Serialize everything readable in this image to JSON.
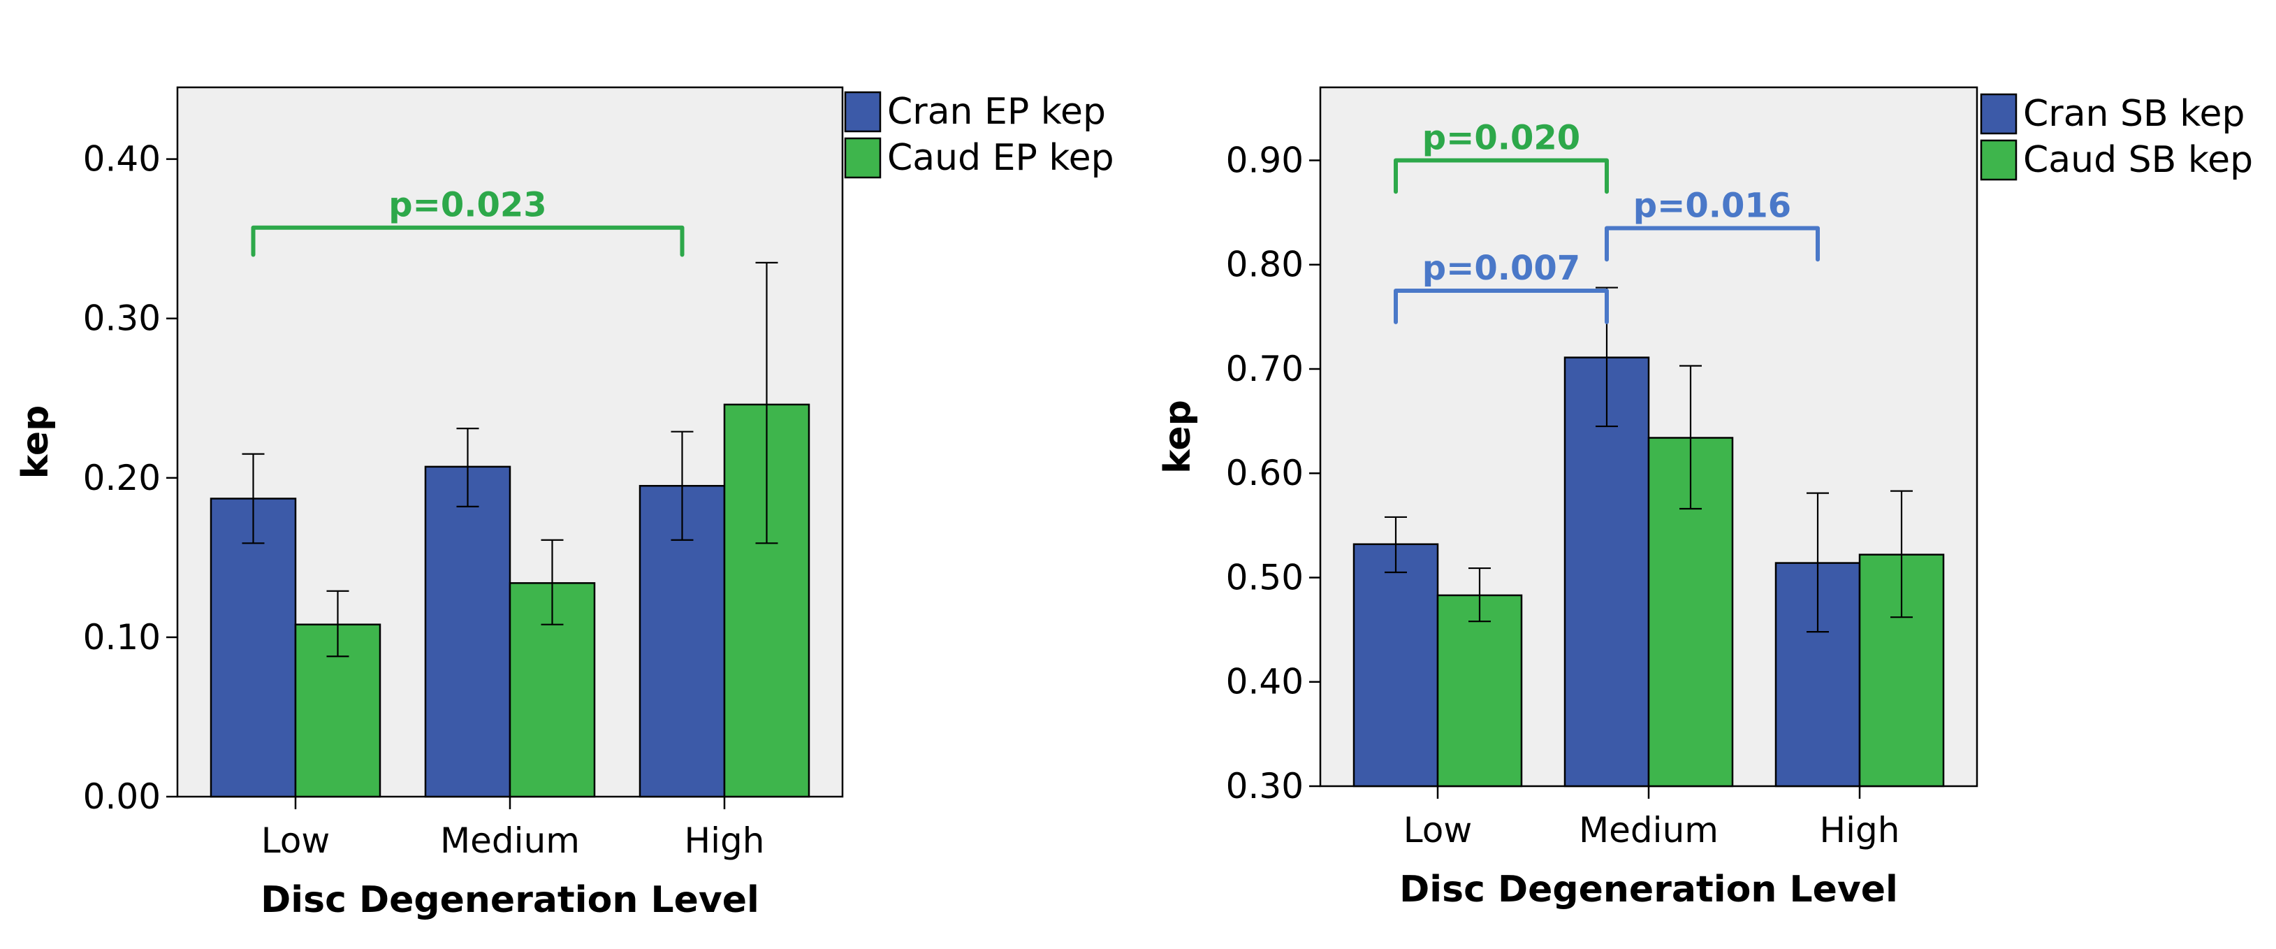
{
  "colors": {
    "cran": "#3c5aa8",
    "caud": "#3eb54c",
    "bracket_green": "#2da84a",
    "bracket_blue": "#4a78c8",
    "plot_bg": "#efefef"
  },
  "chart_data": [
    {
      "type": "bar",
      "xlabel": "Disc Degeneration Level",
      "ylabel": "kep",
      "ylim": [
        0.0,
        0.445
      ],
      "yticks": [
        0.0,
        0.1,
        0.2,
        0.3,
        0.4
      ],
      "ytick_labels": [
        "0.00",
        "0.10",
        "0.20",
        "0.30",
        "0.40"
      ],
      "categories": [
        "Low",
        "Medium",
        "High"
      ],
      "series": [
        {
          "name": "Cran EP kep",
          "color_key": "cran",
          "values": [
            0.187,
            0.207,
            0.195
          ],
          "err_low": [
            0.159,
            0.182,
            0.161
          ],
          "err_high": [
            0.215,
            0.231,
            0.229
          ]
        },
        {
          "name": "Caud EP kep",
          "color_key": "caud",
          "values": [
            0.108,
            0.134,
            0.246
          ],
          "err_low": [
            0.088,
            0.108,
            0.159
          ],
          "err_high": [
            0.129,
            0.161,
            0.335
          ]
        }
      ],
      "legend_position": "outside-top-right",
      "annotations": [
        {
          "text": "p=0.023",
          "color_key": "bracket_green",
          "from": "Low",
          "to": "High",
          "level": 0.357,
          "tick_to": 0.34
        }
      ]
    },
    {
      "type": "bar",
      "xlabel": "Disc Degeneration Level",
      "ylabel": "kep",
      "ylim": [
        0.3,
        0.97
      ],
      "yticks": [
        0.3,
        0.4,
        0.5,
        0.6,
        0.7,
        0.8,
        0.9
      ],
      "ytick_labels": [
        "0.30",
        "0.40",
        "0.50",
        "0.60",
        "0.70",
        "0.80",
        "0.90"
      ],
      "categories": [
        "Low",
        "Medium",
        "High"
      ],
      "series": [
        {
          "name": "Cran SB kep",
          "color_key": "cran",
          "values": [
            0.532,
            0.711,
            0.514
          ],
          "err_low": [
            0.505,
            0.645,
            0.448
          ],
          "err_high": [
            0.558,
            0.778,
            0.581
          ]
        },
        {
          "name": "Caud SB kep",
          "color_key": "caud",
          "values": [
            0.483,
            0.634,
            0.522
          ],
          "err_low": [
            0.458,
            0.566,
            0.462
          ],
          "err_high": [
            0.509,
            0.703,
            0.583
          ]
        }
      ],
      "legend_position": "outside-top-right",
      "annotations": [
        {
          "text": "p=0.020",
          "color_key": "bracket_green",
          "from": "Low",
          "to": "Medium",
          "level": 0.9,
          "tick_to": 0.87
        },
        {
          "text": "p=0.007",
          "color_key": "bracket_blue",
          "from": "Low",
          "to": "Medium",
          "level": 0.775,
          "tick_to": 0.745
        },
        {
          "text": "p=0.016",
          "color_key": "bracket_blue",
          "from": "Medium",
          "to": "High",
          "level": 0.835,
          "tick_to": 0.805
        }
      ]
    }
  ]
}
